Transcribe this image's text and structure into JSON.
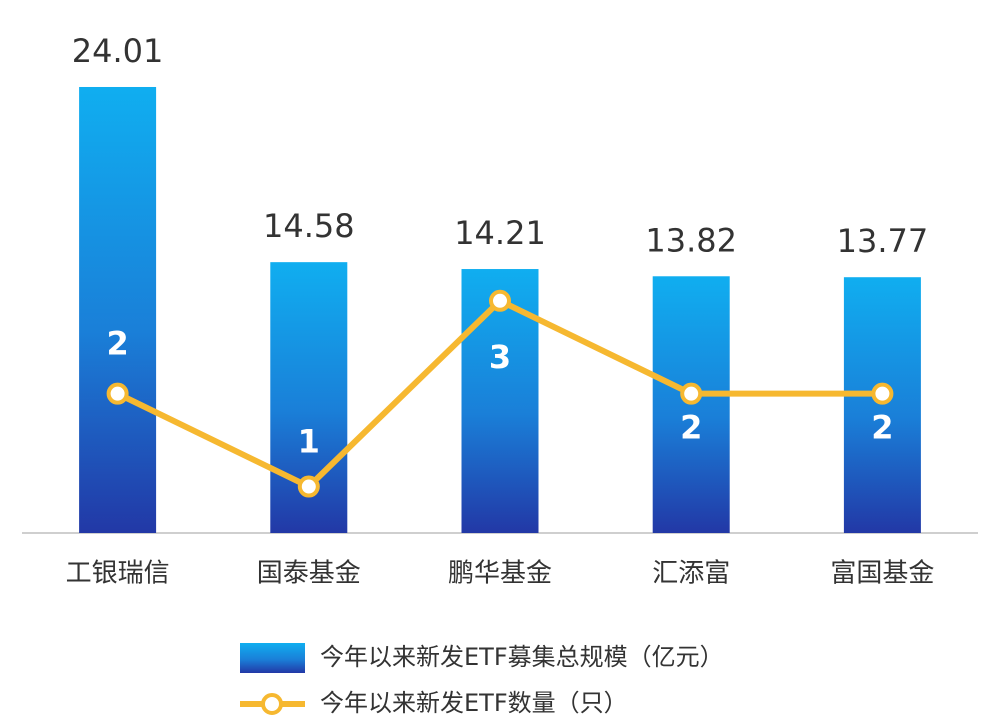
{
  "chart_data": {
    "type": "bar-line",
    "categories": [
      "工银瑞信",
      "国泰基金",
      "鹏华基金",
      "汇添富",
      "富国基金"
    ],
    "series": [
      {
        "name": "今年以来新发ETF募集总规模（亿元）",
        "type": "bar",
        "color": "#1a8fe0",
        "values": [
          24.01,
          14.58,
          14.21,
          13.82,
          13.77
        ]
      },
      {
        "name": "今年以来新发ETF数量（只）",
        "type": "line",
        "axis": "y2",
        "color": "#f6b830",
        "values": [
          2,
          1,
          3,
          2,
          2
        ]
      }
    ],
    "ylim": [
      0,
      25
    ],
    "y2lim": [
      0.5,
      5.5
    ],
    "legend": "bottom"
  }
}
